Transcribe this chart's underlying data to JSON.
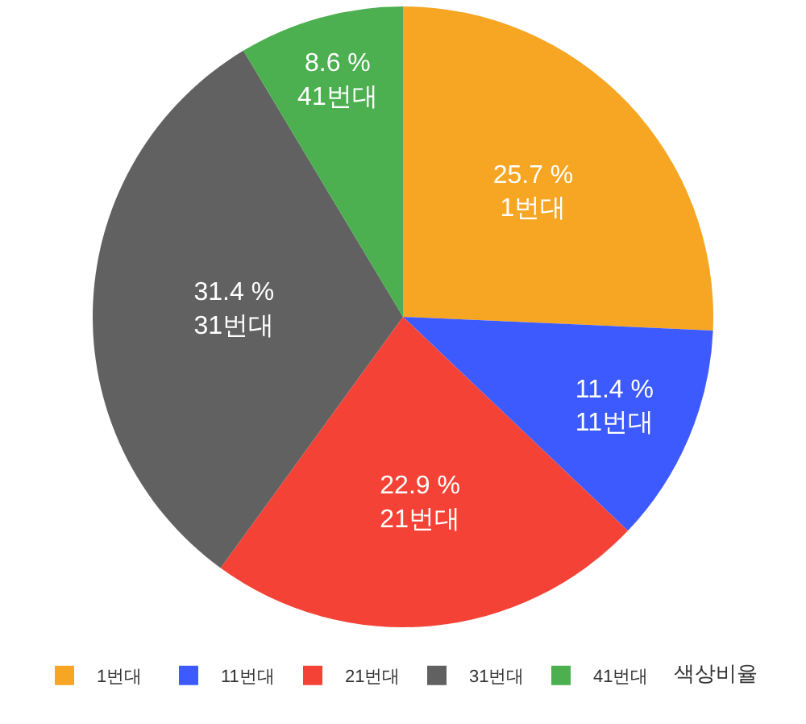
{
  "chart_data": {
    "type": "pie",
    "title": "색상비율",
    "categories": [
      "1번대",
      "11번대",
      "21번대",
      "31번대",
      "41번대"
    ],
    "values": [
      25.7,
      11.4,
      22.9,
      31.4,
      8.6
    ],
    "value_labels": [
      "25.7 %",
      "11.4 %",
      "22.9 %",
      "31.4 %",
      "8.6 %"
    ],
    "colors": [
      "#f6a623",
      "#3d5afe",
      "#f44336",
      "#616161",
      "#4caf50"
    ],
    "legend": "bottom"
  }
}
